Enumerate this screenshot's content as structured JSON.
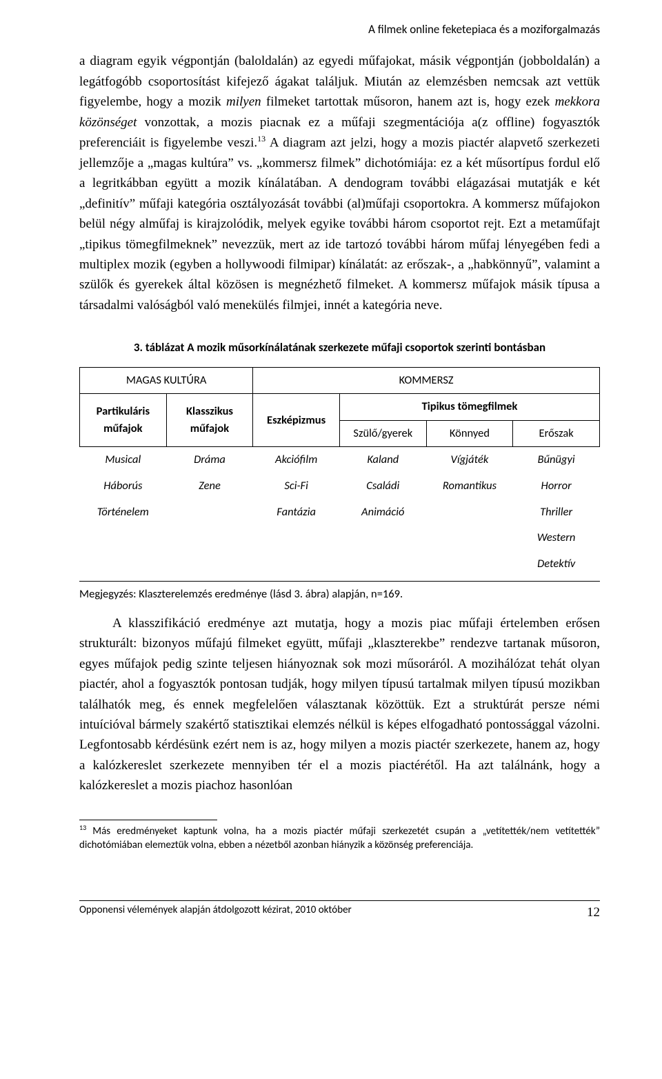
{
  "header": {
    "running_title": "A filmek online feketepiaca és a moziforgalmazás"
  },
  "body": {
    "para1_html": "a diagram egyik végpontján (baloldalán) az egyedi műfajokat, másik végpontján (jobboldalán) a legátfogóbb csoportosítást kifejező ágakat találjuk. Miután az elemzésben nemcsak azt vettük figyelembe, hogy a mozik <span class=\"italic\">milyen</span> filmeket tartottak műsoron, hanem azt is, hogy ezek <span class=\"italic\">mekkora közönséget</span> vonzottak, a mozis piacnak ez a műfaji szegmentációja a(z offline) fogyasztók preferenciáit is figyelembe veszi.<span class=\"sup\">13</span> A diagram azt jelzi, hogy a mozis piactér alapvető szerkezeti jellemzője a „magas kultúra” vs. „kommersz filmek” dichotómiája: ez a két műsortípus fordul elő a legritkábban együtt a mozik kínálatában. A dendogram további elágazásai mutatják e két „definitív” műfaji kategória osztályozását további (al)műfaji csoportokra. A kommersz műfajokon belül négy alműfaj is kirajzolódik, melyek egyike további három csoportot rejt. Ezt a metaműfajt „tipikus tömegfilmeknek” nevezzük, mert az ide tartozó további három műfaj lényegében fedi a multiplex mozik (egyben a hollywoodi filmipar) kínálatát: az erőszak-, a „habkönnyű”, valamint a szülők és gyerekek által közösen is megnézhető filmeket. A kommersz műfajok másik típusa a társadalmi valóságból való menekülés filmjei, innét a kategória neve."
  },
  "table": {
    "title": "3. táblázat A mozik műsorkínálatának szerkezete műfaji csoportok szerinti bontásban",
    "top_groups": {
      "left": "MAGAS KULTÚRA",
      "right": "KOMMERSZ"
    },
    "columns": {
      "c1": "Partikuláris műfajok",
      "c2": "Klasszikus műfajok",
      "c3": "Eszképizmus",
      "c4_group": "Tipikus tömegfilmek",
      "c4": "Szülő/gyerek",
      "c5": "Könnyed",
      "c6": "Erőszak"
    },
    "rows": [
      [
        "Musical",
        "Dráma",
        "Akciófilm",
        "Kaland",
        "Vígjáték",
        "Bűnügyi"
      ],
      [
        "Háborús",
        "Zene",
        "Sci-Fi",
        "Családi",
        "Romantikus",
        "Horror"
      ],
      [
        "Történelem",
        "",
        "Fantázia",
        "Animáció",
        "",
        "Thriller"
      ],
      [
        "",
        "",
        "",
        "",
        "",
        "Western"
      ],
      [
        "",
        "",
        "",
        "",
        "",
        "Detektív"
      ]
    ],
    "note": "Megjegyzés: Klaszterelemzés eredménye (lásd 3. ábra) alapján, n=169."
  },
  "para2": "A klasszifikáció eredménye azt mutatja, hogy a mozis piac műfaji értelemben erősen strukturált: bizonyos műfajú filmeket együtt, műfaji „klaszterekbe” rendezve tartanak műsoron, egyes műfajok pedig szinte teljesen hiányoznak sok mozi műsoráról. A mozihálózat tehát olyan piactér, ahol a fogyasztók pontosan tudják, hogy milyen típusú tartalmak milyen típusú mozikban találhatók meg, és ennek megfelelően választanak közöttük. Ezt a  struktúrát persze némi intuícióval bármely szakértő statisztikai elemzés nélkül is képes elfogadható pontossággal vázolni. Legfontosabb kérdésünk ezért nem is az, hogy milyen a mozis piactér szerkezete, hanem az, hogy a kalózkereslet szerkezete mennyiben tér el a mozis piactérétől. Ha azt találnánk, hogy a kalózkereslet a mozis piachoz hasonlóan",
  "footnote_html": "<span class=\"sup\">13</span> Más eredményeket kaptunk volna, ha a mozis piactér műfaji szerkezetét csupán a „vetítették/nem vetítették” dichotómiában elemeztük volna, ebben a nézetből azonban hiányzik a közönség preferenciája.",
  "footer": {
    "left": "Opponensi vélemények alapján átdolgozott kézirat, 2010 október",
    "page": "12"
  }
}
